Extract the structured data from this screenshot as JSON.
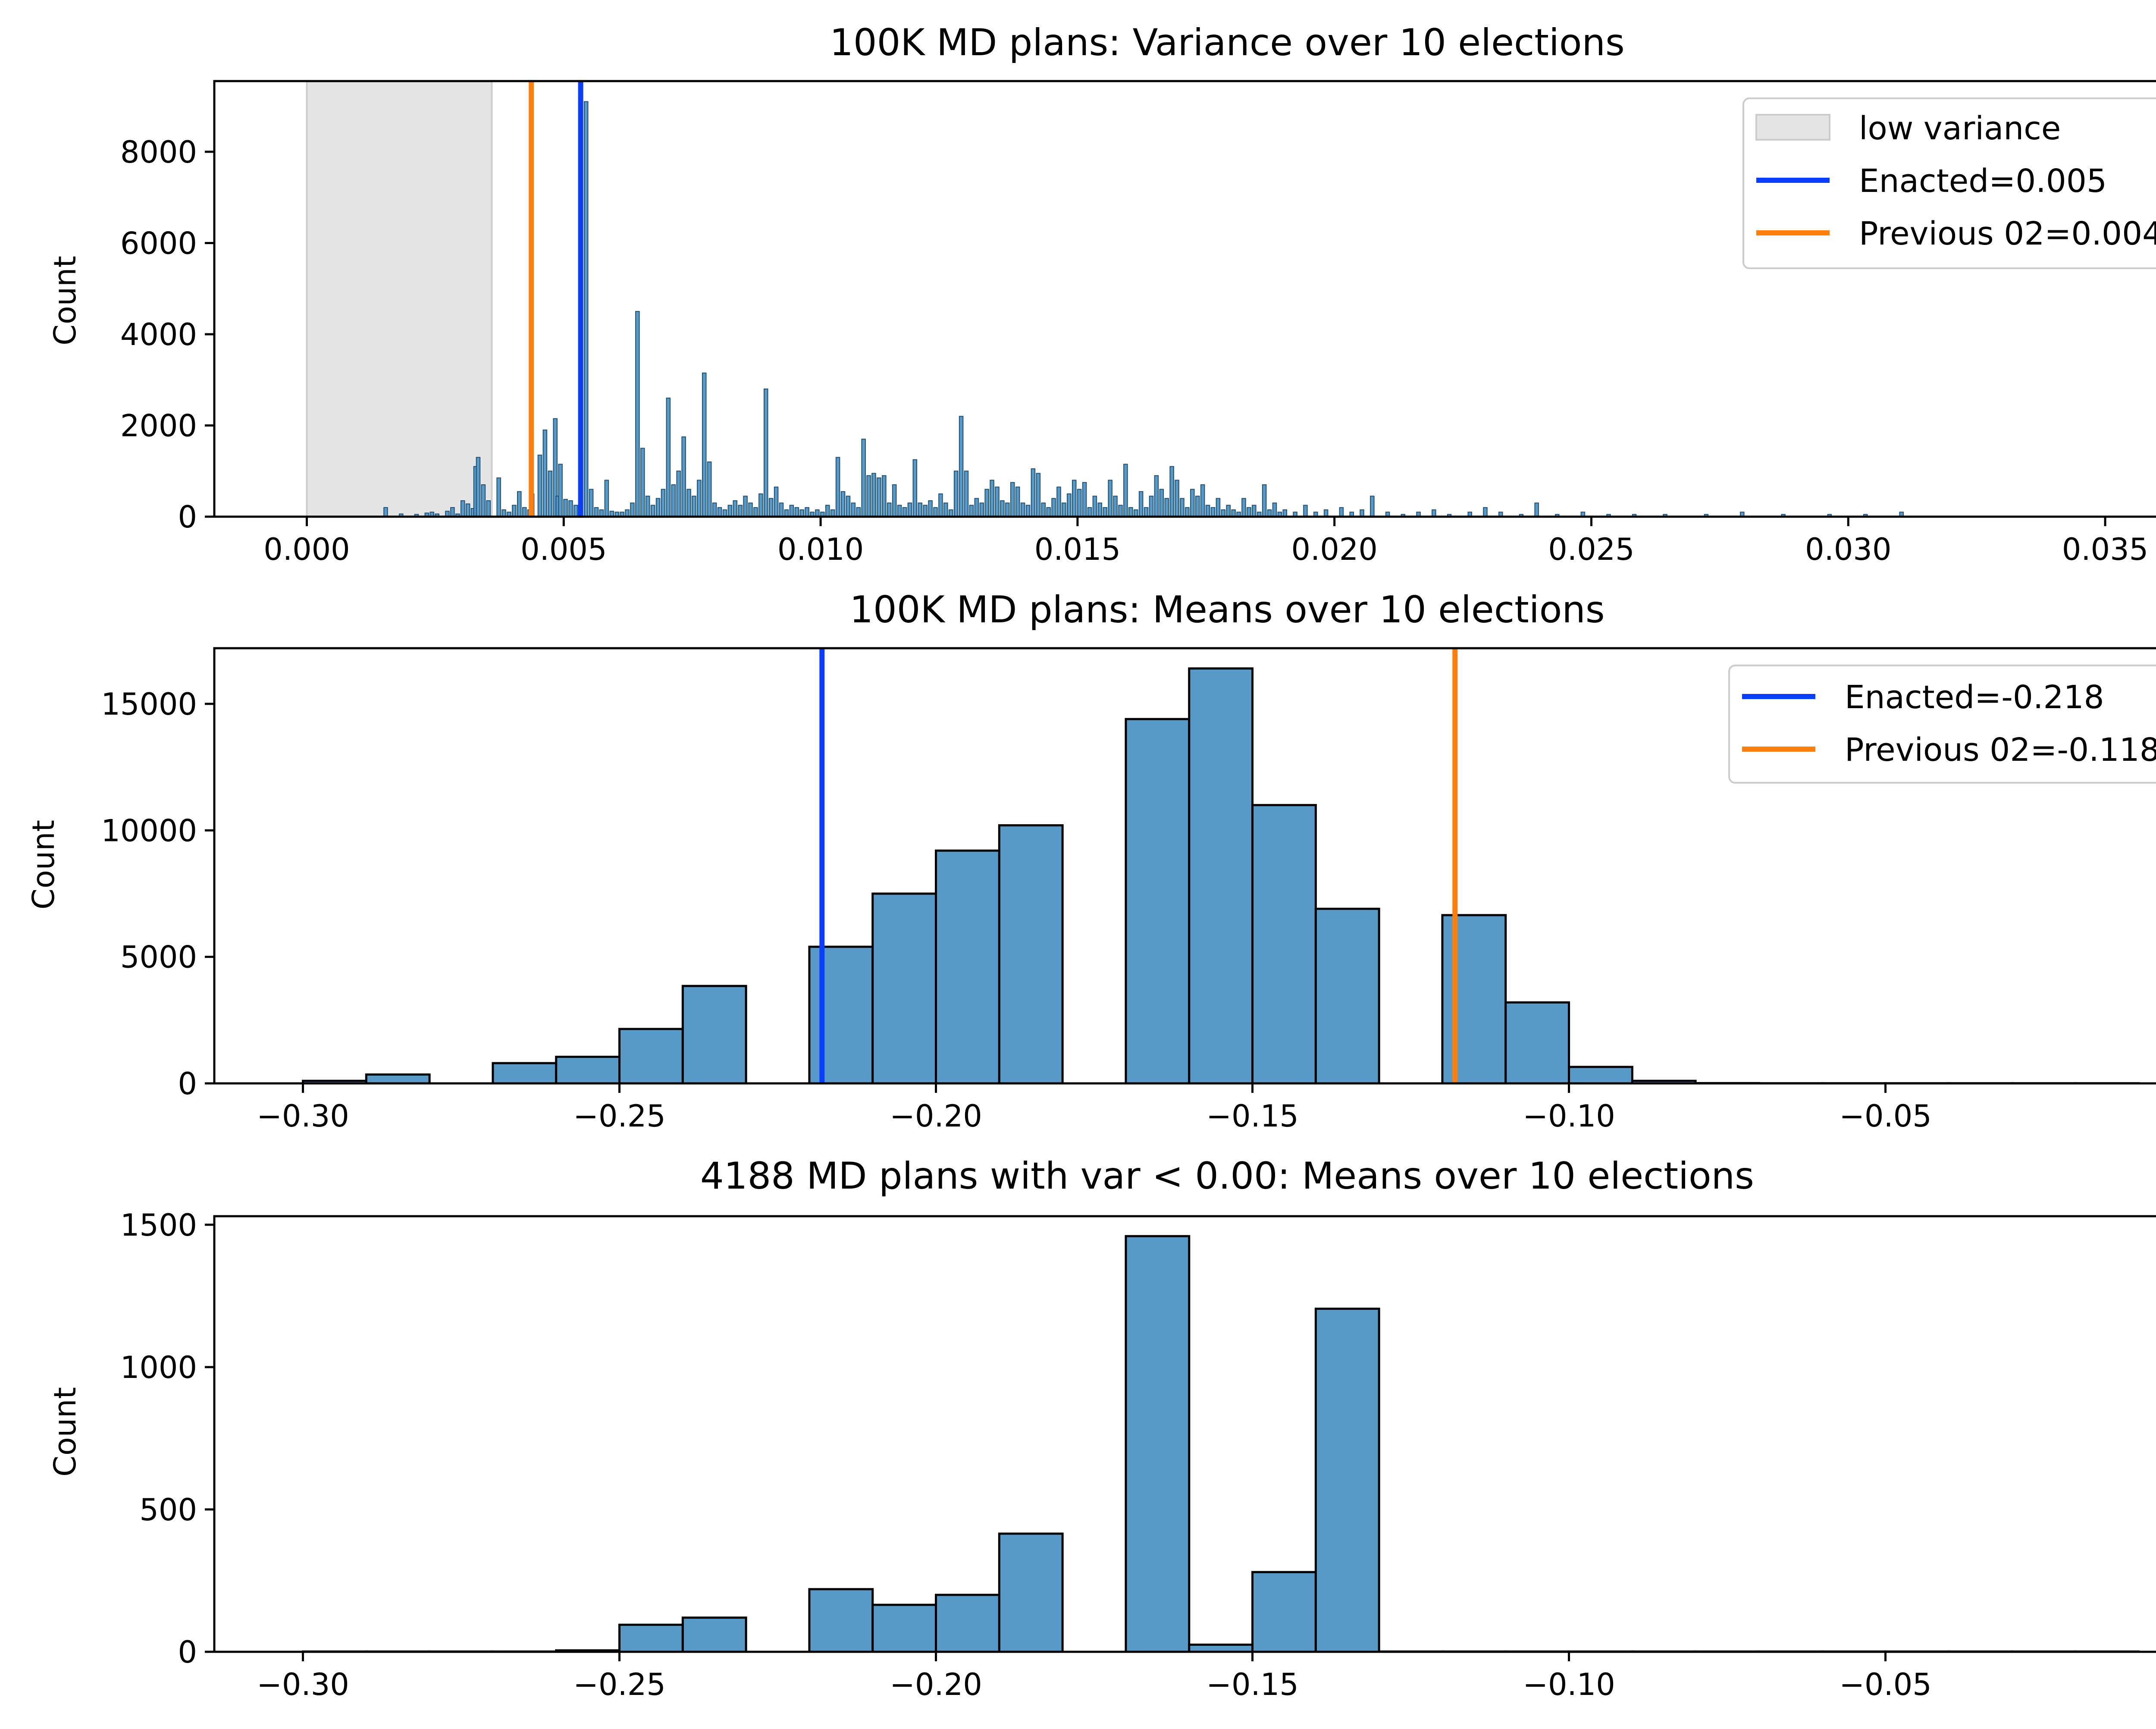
{
  "chart_data": [
    {
      "type": "bar",
      "title": "100K MD plans: Variance over 10 elections",
      "ylabel": "Count",
      "xlim": [
        -0.0018,
        0.0375
      ],
      "ylim": [
        0,
        9550
      ],
      "xticks": [
        "0.000",
        "0.005",
        "0.010",
        "0.015",
        "0.020",
        "0.025",
        "0.030",
        "0.035"
      ],
      "xtick_values": [
        0.0,
        0.005,
        0.01,
        0.015,
        0.02,
        0.025,
        0.03,
        0.035
      ],
      "yticks": [
        "0",
        "2000",
        "4000",
        "6000",
        "8000"
      ],
      "ytick_values": [
        0,
        2000,
        4000,
        6000,
        8000
      ],
      "bin_width": 7.13e-05,
      "bins": [
        [
          0.0015,
          200
        ],
        [
          0.0018,
          60
        ],
        [
          0.0021,
          50
        ],
        [
          0.0023,
          80
        ],
        [
          0.0024,
          100
        ],
        [
          0.0025,
          60
        ],
        [
          0.0027,
          120
        ],
        [
          0.0028,
          200
        ],
        [
          0.0029,
          60
        ],
        [
          0.003,
          350
        ],
        [
          0.0031,
          280
        ],
        [
          0.0032,
          180
        ],
        [
          0.00325,
          1100
        ],
        [
          0.0033,
          1300
        ],
        [
          0.0034,
          700
        ],
        [
          0.0035,
          350
        ],
        [
          0.0037,
          850
        ],
        [
          0.0038,
          150
        ],
        [
          0.0039,
          100
        ],
        [
          0.004,
          250
        ],
        [
          0.0041,
          550
        ],
        [
          0.0042,
          200
        ],
        [
          0.0043,
          150
        ],
        [
          0.00435,
          500
        ],
        [
          0.0045,
          1350
        ],
        [
          0.0046,
          1900
        ],
        [
          0.0047,
          1000
        ],
        [
          0.0048,
          2150
        ],
        [
          0.00485,
          450
        ],
        [
          0.0049,
          1150
        ],
        [
          0.005,
          380
        ],
        [
          0.0051,
          350
        ],
        [
          0.0052,
          250
        ],
        [
          0.0053,
          1450
        ],
        [
          0.0054,
          9100
        ],
        [
          0.0055,
          600
        ],
        [
          0.0056,
          200
        ],
        [
          0.0057,
          150
        ],
        [
          0.0058,
          800
        ],
        [
          0.0059,
          120
        ],
        [
          0.006,
          100
        ],
        [
          0.0061,
          100
        ],
        [
          0.0062,
          150
        ],
        [
          0.0063,
          300
        ],
        [
          0.0064,
          4500
        ],
        [
          0.0065,
          1500
        ],
        [
          0.0066,
          450
        ],
        [
          0.0067,
          250
        ],
        [
          0.0068,
          400
        ],
        [
          0.0069,
          600
        ],
        [
          0.007,
          2600
        ],
        [
          0.0071,
          700
        ],
        [
          0.0072,
          1000
        ],
        [
          0.0073,
          1750
        ],
        [
          0.0074,
          600
        ],
        [
          0.0075,
          450
        ],
        [
          0.0076,
          800
        ],
        [
          0.0077,
          3150
        ],
        [
          0.0078,
          1200
        ],
        [
          0.0079,
          300
        ],
        [
          0.008,
          200
        ],
        [
          0.0081,
          150
        ],
        [
          0.0082,
          250
        ],
        [
          0.0083,
          350
        ],
        [
          0.0084,
          250
        ],
        [
          0.0085,
          450
        ],
        [
          0.0086,
          300
        ],
        [
          0.0087,
          200
        ],
        [
          0.0088,
          500
        ],
        [
          0.0089,
          2800
        ],
        [
          0.009,
          400
        ],
        [
          0.0091,
          650
        ],
        [
          0.0092,
          300
        ],
        [
          0.0093,
          150
        ],
        [
          0.0094,
          250
        ],
        [
          0.0095,
          200
        ],
        [
          0.0096,
          150
        ],
        [
          0.0097,
          200
        ],
        [
          0.0098,
          100
        ],
        [
          0.0099,
          150
        ],
        [
          0.01,
          100
        ],
        [
          0.0101,
          250
        ],
        [
          0.0102,
          150
        ],
        [
          0.0103,
          1300
        ],
        [
          0.0104,
          550
        ],
        [
          0.0105,
          450
        ],
        [
          0.0106,
          300
        ],
        [
          0.0107,
          200
        ],
        [
          0.0108,
          1700
        ],
        [
          0.0109,
          900
        ],
        [
          0.011,
          950
        ],
        [
          0.0111,
          850
        ],
        [
          0.0112,
          900
        ],
        [
          0.0113,
          300
        ],
        [
          0.0114,
          700
        ],
        [
          0.0115,
          250
        ],
        [
          0.0116,
          200
        ],
        [
          0.0117,
          300
        ],
        [
          0.0118,
          1250
        ],
        [
          0.0119,
          300
        ],
        [
          0.012,
          250
        ],
        [
          0.0121,
          350
        ],
        [
          0.0122,
          200
        ],
        [
          0.0123,
          500
        ],
        [
          0.0124,
          300
        ],
        [
          0.0125,
          150
        ],
        [
          0.0126,
          1000
        ],
        [
          0.0127,
          2200
        ],
        [
          0.0128,
          1000
        ],
        [
          0.0129,
          250
        ],
        [
          0.013,
          400
        ],
        [
          0.0131,
          300
        ],
        [
          0.0132,
          600
        ],
        [
          0.0133,
          800
        ],
        [
          0.0134,
          650
        ],
        [
          0.0135,
          350
        ],
        [
          0.0136,
          300
        ],
        [
          0.0137,
          750
        ],
        [
          0.0138,
          650
        ],
        [
          0.0139,
          300
        ],
        [
          0.014,
          250
        ],
        [
          0.0141,
          1050
        ],
        [
          0.0142,
          950
        ],
        [
          0.0143,
          300
        ],
        [
          0.0144,
          200
        ],
        [
          0.0145,
          400
        ],
        [
          0.0146,
          650
        ],
        [
          0.0147,
          300
        ],
        [
          0.0148,
          500
        ],
        [
          0.0149,
          800
        ],
        [
          0.015,
          600
        ],
        [
          0.0151,
          750
        ],
        [
          0.0152,
          200
        ],
        [
          0.0153,
          450
        ],
        [
          0.0154,
          300
        ],
        [
          0.0155,
          200
        ],
        [
          0.0156,
          800
        ],
        [
          0.0157,
          450
        ],
        [
          0.0158,
          250
        ],
        [
          0.0159,
          1150
        ],
        [
          0.016,
          200
        ],
        [
          0.0161,
          150
        ],
        [
          0.0162,
          550
        ],
        [
          0.0163,
          200
        ],
        [
          0.0164,
          450
        ],
        [
          0.0165,
          900
        ],
        [
          0.0166,
          600
        ],
        [
          0.0167,
          400
        ],
        [
          0.0168,
          1100
        ],
        [
          0.0169,
          800
        ],
        [
          0.017,
          400
        ],
        [
          0.0171,
          200
        ],
        [
          0.0172,
          600
        ],
        [
          0.0173,
          450
        ],
        [
          0.0174,
          700
        ],
        [
          0.0175,
          250
        ],
        [
          0.0176,
          200
        ],
        [
          0.0177,
          400
        ],
        [
          0.0178,
          150
        ],
        [
          0.0179,
          250
        ],
        [
          0.018,
          150
        ],
        [
          0.0181,
          100
        ],
        [
          0.0182,
          400
        ],
        [
          0.0183,
          200
        ],
        [
          0.0184,
          250
        ],
        [
          0.0185,
          100
        ],
        [
          0.0186,
          700
        ],
        [
          0.0187,
          150
        ],
        [
          0.0188,
          300
        ],
        [
          0.0189,
          100
        ],
        [
          0.019,
          150
        ],
        [
          0.0192,
          100
        ],
        [
          0.0194,
          250
        ],
        [
          0.0196,
          100
        ],
        [
          0.0198,
          150
        ],
        [
          0.0201,
          200
        ],
        [
          0.0203,
          100
        ],
        [
          0.0205,
          150
        ],
        [
          0.0207,
          450
        ],
        [
          0.021,
          100
        ],
        [
          0.0213,
          50
        ],
        [
          0.0216,
          100
        ],
        [
          0.0219,
          150
        ],
        [
          0.0222,
          50
        ],
        [
          0.0226,
          100
        ],
        [
          0.0229,
          200
        ],
        [
          0.0232,
          100
        ],
        [
          0.0236,
          50
        ],
        [
          0.0239,
          300
        ],
        [
          0.0243,
          50
        ],
        [
          0.0248,
          100
        ],
        [
          0.0253,
          50
        ],
        [
          0.0258,
          50
        ],
        [
          0.0264,
          50
        ],
        [
          0.0272,
          50
        ],
        [
          0.0279,
          100
        ],
        [
          0.0287,
          50
        ],
        [
          0.0296,
          50
        ],
        [
          0.0303,
          50
        ],
        [
          0.031,
          100
        ]
      ],
      "shaded_region": {
        "label": "low variance",
        "x": [
          0.0,
          0.0036
        ]
      },
      "vlines": [
        {
          "name": "Enacted=0.005",
          "x": 0.00533,
          "color": "#0b3dff"
        },
        {
          "name": "Previous 02=0.004",
          "x": 0.00437,
          "color": "#ff7f0e"
        }
      ],
      "legend": {
        "position": "top-right",
        "entries": [
          "low variance",
          "Enacted=0.005",
          "Previous 02=0.004"
        ]
      }
    },
    {
      "type": "bar",
      "title": "100K MD plans: Means over 10 elections",
      "ylabel": "Count",
      "xlim": [
        -0.314,
        0.005
      ],
      "ylim": [
        0,
        17200
      ],
      "xticks": [
        "−0.30",
        "−0.25",
        "−0.20",
        "−0.15",
        "−0.10",
        "−0.05",
        "0.00"
      ],
      "xtick_values": [
        -0.3,
        -0.25,
        -0.2,
        -0.15,
        -0.1,
        -0.05,
        0.0
      ],
      "yticks": [
        "0",
        "5000",
        "10000",
        "15000"
      ],
      "ytick_values": [
        0,
        5000,
        10000,
        15000
      ],
      "bin_width": 0.01,
      "bins": [
        [
          -0.3,
          100
        ],
        [
          -0.29,
          350
        ],
        [
          -0.28,
          0
        ],
        [
          -0.27,
          800
        ],
        [
          -0.26,
          1050
        ],
        [
          -0.25,
          2150
        ],
        [
          -0.24,
          3850
        ],
        [
          -0.23,
          0
        ],
        [
          -0.22,
          5400
        ],
        [
          -0.21,
          7500
        ],
        [
          -0.2,
          9200
        ],
        [
          -0.19,
          10200
        ],
        [
          -0.18,
          0
        ],
        [
          -0.17,
          14400
        ],
        [
          -0.16,
          16400
        ],
        [
          -0.15,
          11000
        ],
        [
          -0.14,
          6900
        ],
        [
          -0.13,
          0
        ],
        [
          -0.12,
          6650
        ],
        [
          -0.11,
          3200
        ],
        [
          -0.1,
          650
        ],
        [
          -0.09,
          100
        ],
        [
          -0.08,
          10
        ],
        [
          -0.07,
          5
        ],
        [
          -0.06,
          5
        ],
        [
          -0.05,
          5
        ],
        [
          -0.04,
          5
        ],
        [
          -0.03,
          5
        ],
        [
          -0.02,
          5
        ]
      ],
      "vlines": [
        {
          "name": "Enacted=-0.218",
          "x": -0.218,
          "color": "#0b3dff"
        },
        {
          "name": "Previous 02=-0.118",
          "x": -0.118,
          "color": "#ff7f0e"
        }
      ],
      "legend": {
        "position": "top-right",
        "entries": [
          "Enacted=-0.218",
          "Previous 02=-0.118"
        ]
      }
    },
    {
      "type": "bar",
      "title": "4188 MD plans with var < 0.00: Means over 10 elections",
      "ylabel": "Count",
      "xlim": [
        -0.314,
        0.005
      ],
      "ylim": [
        0,
        1530
      ],
      "xticks": [
        "−0.30",
        "−0.25",
        "−0.20",
        "−0.15",
        "−0.10",
        "−0.05",
        "0.00"
      ],
      "xtick_values": [
        -0.3,
        -0.25,
        -0.2,
        -0.15,
        -0.1,
        -0.05,
        0.0
      ],
      "yticks": [
        "0",
        "500",
        "1000",
        "1500"
      ],
      "ytick_values": [
        0,
        500,
        1000,
        1500
      ],
      "bin_width": 0.01,
      "bins": [
        [
          -0.3,
          1
        ],
        [
          -0.29,
          1
        ],
        [
          -0.28,
          1
        ],
        [
          -0.27,
          1
        ],
        [
          -0.26,
          5
        ],
        [
          -0.25,
          95
        ],
        [
          -0.24,
          120
        ],
        [
          -0.23,
          0
        ],
        [
          -0.22,
          220
        ],
        [
          -0.21,
          165
        ],
        [
          -0.2,
          200
        ],
        [
          -0.19,
          415
        ],
        [
          -0.18,
          0
        ],
        [
          -0.17,
          1460
        ],
        [
          -0.16,
          25
        ],
        [
          -0.15,
          280
        ],
        [
          -0.14,
          1205
        ],
        [
          -0.13,
          1
        ],
        [
          -0.12,
          1
        ],
        [
          -0.11,
          1
        ],
        [
          -0.1,
          1
        ],
        [
          -0.09,
          1
        ],
        [
          -0.08,
          1
        ],
        [
          -0.07,
          1
        ],
        [
          -0.06,
          1
        ],
        [
          -0.05,
          1
        ],
        [
          -0.04,
          1
        ],
        [
          -0.03,
          1
        ],
        [
          -0.02,
          1
        ]
      ]
    }
  ]
}
